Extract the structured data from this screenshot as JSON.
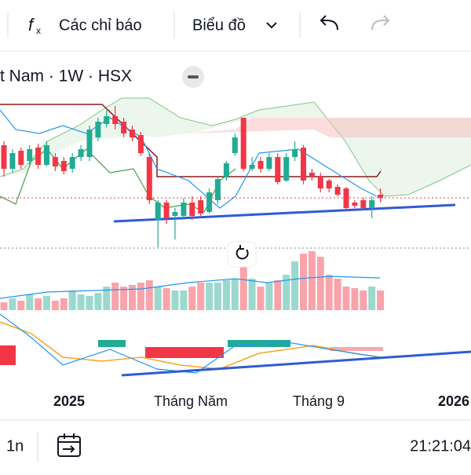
{
  "toolbar": {
    "indicators": "Các chỉ báo",
    "chart_type": "Biểu đồ"
  },
  "chart_data": {
    "type": "candlestick",
    "title": "t Nam · 1W · HSX",
    "x_axis_labels": [
      "2025",
      "Tháng Năm",
      "Tháng 9",
      "2026"
    ],
    "up_color": "#22ab94",
    "down_color": "#f23645",
    "ylim": [
      0,
      320
    ],
    "open": [
      135,
      105,
      128,
      115,
      132,
      110,
      120,
      115,
      105,
      120,
      120,
      145,
      162,
      172,
      165,
      155,
      148,
      120,
      40,
      62,
      45,
      45,
      62,
      65,
      50,
      65,
      95,
      125,
      170,
      105,
      115,
      105,
      120,
      90,
      120,
      132,
      100,
      95,
      90,
      82,
      80,
      62,
      65,
      55,
      72
    ],
    "high": [
      140,
      130,
      132,
      135,
      137,
      140,
      125,
      120,
      125,
      135,
      160,
      170,
      180,
      185,
      170,
      160,
      152,
      125,
      65,
      65,
      55,
      68,
      70,
      70,
      80,
      95,
      115,
      150,
      170,
      120,
      120,
      125,
      125,
      125,
      140,
      135,
      105,
      100,
      92,
      85,
      82,
      65,
      68,
      70,
      80
    ],
    "low": [
      95,
      100,
      105,
      110,
      105,
      108,
      102,
      98,
      100,
      115,
      115,
      140,
      158,
      155,
      145,
      140,
      122,
      60,
      5,
      35,
      15,
      40,
      40,
      45,
      48,
      60,
      90,
      122,
      102,
      102,
      100,
      102,
      85,
      88,
      115,
      85,
      90,
      75,
      75,
      70,
      52,
      55,
      52,
      42,
      62
    ],
    "close": [
      105,
      125,
      110,
      130,
      110,
      135,
      108,
      102,
      120,
      130,
      155,
      165,
      172,
      162,
      150,
      145,
      125,
      65,
      62,
      42,
      50,
      62,
      45,
      48,
      75,
      92,
      112,
      145,
      105,
      110,
      105,
      120,
      88,
      120,
      130,
      90,
      95,
      80,
      80,
      72,
      55,
      58,
      55,
      65,
      68
    ],
    "volume_ylim": [
      0,
      80
    ],
    "volume": [
      10,
      15,
      12,
      20,
      15,
      18,
      12,
      15,
      25,
      20,
      18,
      22,
      30,
      35,
      30,
      32,
      35,
      38,
      30,
      28,
      25,
      25,
      30,
      35,
      35,
      35,
      38,
      40,
      55,
      40,
      30,
      35,
      38,
      45,
      62,
      72,
      75,
      68,
      45,
      40,
      30,
      28,
      25,
      30,
      25
    ]
  },
  "status_bar": {
    "interval": "1n",
    "time": "21:21:04"
  }
}
